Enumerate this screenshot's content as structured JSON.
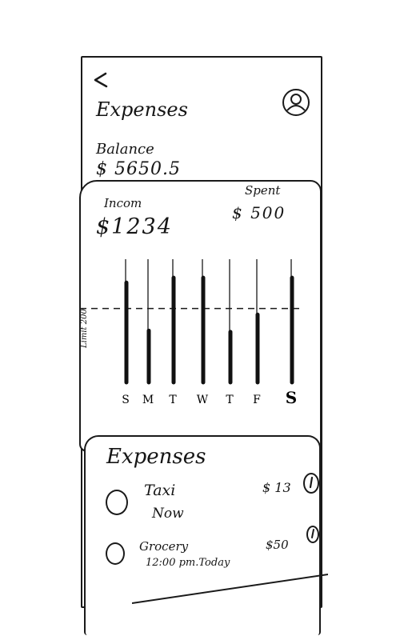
{
  "header": {
    "title": "Expenses"
  },
  "balance": {
    "label": "Balance",
    "value": "$ 5650.5"
  },
  "summary": {
    "income_label": "Incom",
    "income_value": "$1234",
    "spent_label": "Spent",
    "spent_value": "$ 500"
  },
  "chart_data": {
    "type": "bar",
    "categories": [
      "S",
      "M",
      "T",
      "W",
      "T",
      "F",
      "S"
    ],
    "selected_category": "S",
    "values": [
      0.81,
      0.42,
      0.85,
      0.85,
      0.41,
      0.55,
      0.85
    ],
    "limit_label": "Limit 200",
    "limit_value": 0.6,
    "ylim": [
      0,
      1
    ]
  },
  "expenses": {
    "title": "Expenses",
    "items": [
      {
        "name": "Taxi",
        "detail": "Now",
        "amount": "$ 13",
        "info_icon": "info-icon"
      },
      {
        "name": "Grocery",
        "detail": "12:00 pm.Today",
        "amount": "$50",
        "info_icon": "info-icon"
      }
    ]
  },
  "icons": {
    "back": "back-arrow-icon",
    "profile": "user-profile-icon",
    "info": "info-icon"
  }
}
